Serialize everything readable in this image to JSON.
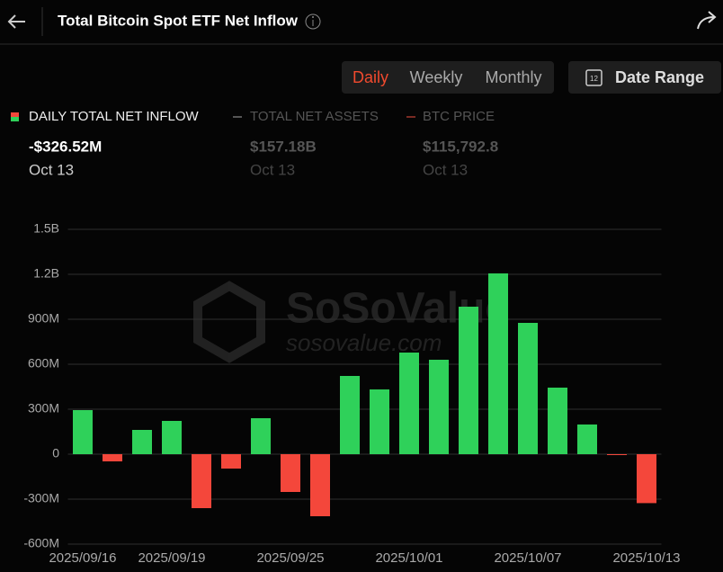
{
  "header": {
    "title": "Total Bitcoin Spot ETF Net Inflow"
  },
  "tabs": [
    "Daily",
    "Weekly",
    "Monthly"
  ],
  "date_range": {
    "icon_day": "12",
    "label": "Date Range"
  },
  "summary": [
    {
      "name": "DAILY TOTAL NET INFLOW",
      "value": "-$326.52M",
      "date": "Oct 13"
    },
    {
      "name": "TOTAL NET ASSETS",
      "value": "$157.18B",
      "date": "Oct 13"
    },
    {
      "name": "BTC PRICE",
      "value": "$115,792.8",
      "date": "Oct 13"
    }
  ],
  "watermark": {
    "brand": "SoSoValue",
    "url": "sosovalue.com"
  },
  "chart_data": {
    "type": "bar",
    "categories": [
      "2025/09/16",
      null,
      null,
      "2025/09/19",
      null,
      null,
      null,
      "2025/09/25",
      null,
      null,
      null,
      "2025/10/01",
      null,
      null,
      null,
      "2025/10/07",
      null,
      null,
      null,
      "2025/10/13"
    ],
    "values": [
      294000000,
      -48000000,
      162000000,
      222000000,
      -360000000,
      -96000000,
      240000000,
      -252000000,
      -414000000,
      522000000,
      432000000,
      678000000,
      630000000,
      984000000,
      1206000000,
      876000000,
      444000000,
      198000000,
      -4500000,
      -326520000
    ],
    "colors": {
      "positive": "#2fd15a",
      "negative": "#f4473b"
    },
    "ylim": [
      -600000000,
      1500000000
    ],
    "yticks": [
      {
        "value": -600000000,
        "label": "-600M"
      },
      {
        "value": -300000000,
        "label": "-300M"
      },
      0,
      {
        "value": 300000000,
        "label": "300M"
      },
      {
        "value": 600000000,
        "label": "600M"
      },
      {
        "value": 900000000,
        "label": "900M"
      },
      {
        "value": 1200000000,
        "label": "1.2B"
      },
      {
        "value": 1500000000,
        "label": "1.5B"
      }
    ],
    "grid": true
  }
}
